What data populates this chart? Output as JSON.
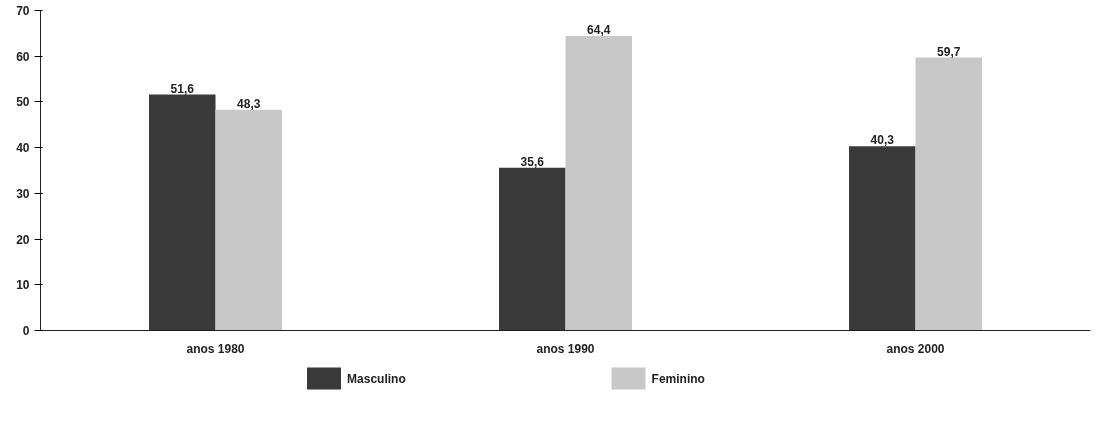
{
  "chart_data": {
    "type": "bar",
    "categories": [
      "anos 1980",
      "anos 1990",
      "anos 2000"
    ],
    "series": [
      {
        "name": "Masculino",
        "color": "#3a3a3a",
        "values": [
          51.6,
          35.6,
          40.3
        ],
        "value_labels": [
          "51,6",
          "35,6",
          "40,3"
        ]
      },
      {
        "name": "Feminino",
        "color": "#c8c8c8",
        "values": [
          48.3,
          64.4,
          59.7
        ],
        "value_labels": [
          "48,3",
          "64,4",
          "59,7"
        ]
      }
    ],
    "ylim": [
      0,
      70
    ],
    "yticks": [
      0,
      10,
      20,
      30,
      40,
      50,
      60,
      70
    ],
    "legend": "bottom"
  }
}
